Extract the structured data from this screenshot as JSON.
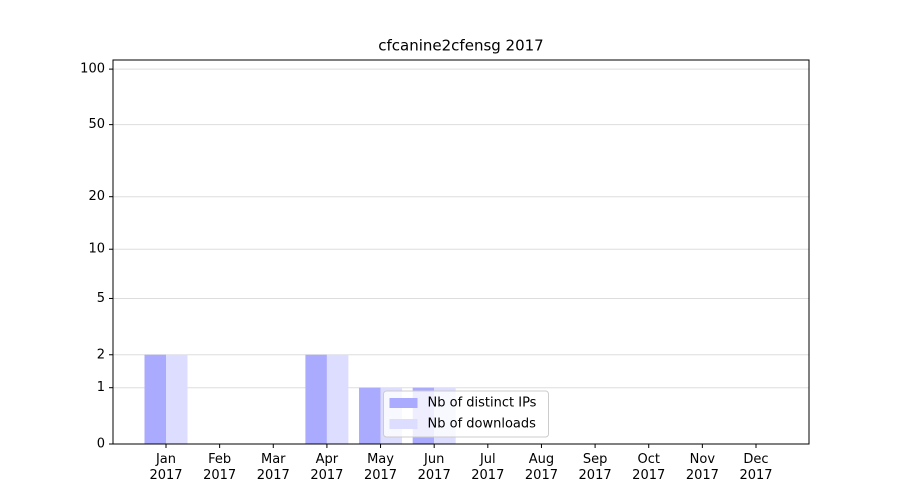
{
  "chart_data": {
    "type": "bar",
    "title": "cfcanine2cfensg 2017",
    "categories": [
      "Jan\n2017",
      "Feb\n2017",
      "Mar\n2017",
      "Apr\n2017",
      "May\n2017",
      "Jun\n2017",
      "Jul\n2017",
      "Aug\n2017",
      "Sep\n2017",
      "Oct\n2017",
      "Nov\n2017",
      "Dec\n2017"
    ],
    "series": [
      {
        "name": "Nb of distinct IPs",
        "color": "#aaaaff",
        "values": [
          2,
          0,
          0,
          2,
          1,
          1,
          0,
          0,
          0,
          0,
          0,
          0
        ]
      },
      {
        "name": "Nb of downloads",
        "color": "#ddddff",
        "values": [
          2,
          0,
          0,
          2,
          1,
          1,
          0,
          0,
          0,
          0,
          0,
          0
        ]
      }
    ],
    "yscale": "log1p",
    "ylim": [
      0,
      112
    ],
    "yticks": [
      0,
      1,
      2,
      5,
      10,
      20,
      50,
      100
    ],
    "grid": true,
    "legend": "lower center"
  }
}
